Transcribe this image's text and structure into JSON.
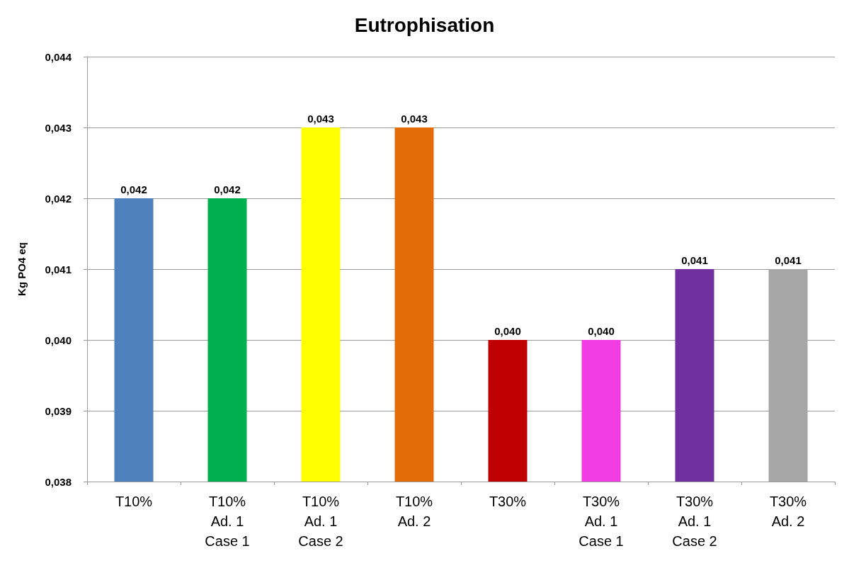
{
  "chart_data": {
    "type": "bar",
    "title": "Eutrophisation",
    "ylabel": "Kg PO4 eq",
    "categories": [
      "T10%",
      "T10%\nAd. 1\nCase 1",
      "T10%\nAd. 1\nCase 2",
      "T10%\nAd. 2",
      "T30%",
      "T30%\nAd. 1\nCase 1",
      "T30%\nAd. 1\nCase 2",
      "T30%\nAd. 2"
    ],
    "values": [
      0.042,
      0.042,
      0.043,
      0.043,
      0.04,
      0.04,
      0.041,
      0.041
    ],
    "value_labels": [
      "0,042",
      "0,042",
      "0,043",
      "0,043",
      "0,040",
      "0,040",
      "0,041",
      "0,041"
    ],
    "colors": [
      "#4f81bd",
      "#00b050",
      "#ffff00",
      "#e36c09",
      "#c00000",
      "#f03ce0",
      "#7030a0",
      "#a6a6a6"
    ],
    "ylim": [
      0.038,
      0.044
    ],
    "yticks": [
      {
        "value": 0.038,
        "label": "0,038"
      },
      {
        "value": 0.039,
        "label": "0,039"
      },
      {
        "value": 0.04,
        "label": "0,040"
      },
      {
        "value": 0.041,
        "label": "0,041"
      },
      {
        "value": 0.042,
        "label": "0,042"
      },
      {
        "value": 0.043,
        "label": "0,043"
      },
      {
        "value": 0.044,
        "label": "0,044"
      }
    ],
    "grid": true
  }
}
